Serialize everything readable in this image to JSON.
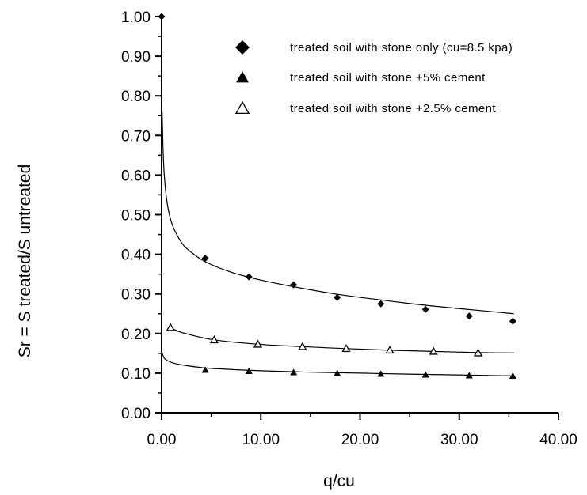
{
  "chart_data": {
    "type": "scatter",
    "title": "",
    "xlabel": "q/cu",
    "ylabel": "Sr = S treated/S untreated",
    "xlim": [
      0,
      40
    ],
    "ylim": [
      0,
      1
    ],
    "x_ticks": [
      "0.00",
      "10.00",
      "20.00",
      "30.00",
      "40.00"
    ],
    "y_ticks": [
      "0.00",
      "0.10",
      "0.20",
      "0.30",
      "0.40",
      "0.50",
      "0.60",
      "0.70",
      "0.80",
      "0.90",
      "1.00"
    ],
    "grid": false,
    "legend_position": "top-right",
    "series": [
      {
        "name": "treated soil with stone only (cu=8.5 kpa)",
        "marker": "filled-diamond",
        "points": [
          [
            0,
            1.0
          ],
          [
            4.4,
            0.39
          ],
          [
            8.8,
            0.343
          ],
          [
            13.3,
            0.323
          ],
          [
            17.7,
            0.291
          ],
          [
            22.1,
            0.275
          ],
          [
            26.6,
            0.261
          ],
          [
            31.0,
            0.244
          ],
          [
            35.4,
            0.231
          ]
        ],
        "fit": [
          [
            0.05,
            0.76
          ],
          [
            0.2,
            0.63
          ],
          [
            0.5,
            0.54
          ],
          [
            1,
            0.48
          ],
          [
            2,
            0.43
          ],
          [
            3,
            0.405
          ],
          [
            4.5,
            0.38
          ],
          [
            7,
            0.355
          ],
          [
            10,
            0.335
          ],
          [
            14,
            0.315
          ],
          [
            18,
            0.298
          ],
          [
            22,
            0.285
          ],
          [
            26,
            0.273
          ],
          [
            30,
            0.263
          ],
          [
            35.5,
            0.25
          ]
        ]
      },
      {
        "name": "treated soil with stone +5% cement",
        "marker": "filled-triangle",
        "points": [
          [
            4.4,
            0.108
          ],
          [
            8.8,
            0.105
          ],
          [
            13.3,
            0.102
          ],
          [
            17.7,
            0.1
          ],
          [
            22.1,
            0.098
          ],
          [
            26.6,
            0.096
          ],
          [
            31.0,
            0.094
          ],
          [
            35.4,
            0.093
          ]
        ],
        "fit": [
          [
            0.05,
            0.152
          ],
          [
            0.3,
            0.137
          ],
          [
            1,
            0.127
          ],
          [
            2,
            0.121
          ],
          [
            4.5,
            0.113
          ],
          [
            9,
            0.107
          ],
          [
            14,
            0.103
          ],
          [
            20,
            0.1
          ],
          [
            26,
            0.097
          ],
          [
            31,
            0.095
          ],
          [
            35.5,
            0.093
          ]
        ]
      },
      {
        "name": "treated soil with stone +2.5% cement",
        "marker": "open-triangle",
        "points": [
          [
            0.9,
            0.215
          ],
          [
            5.3,
            0.184
          ],
          [
            9.7,
            0.173
          ],
          [
            14.2,
            0.167
          ],
          [
            18.6,
            0.162
          ],
          [
            23.0,
            0.158
          ],
          [
            27.4,
            0.155
          ],
          [
            31.9,
            0.151
          ]
        ],
        "fit": [
          [
            0.9,
            0.216
          ],
          [
            2,
            0.203
          ],
          [
            5.3,
            0.184
          ],
          [
            9.7,
            0.173
          ],
          [
            14.2,
            0.167
          ],
          [
            18.6,
            0.162
          ],
          [
            23,
            0.158
          ],
          [
            27.4,
            0.155
          ],
          [
            31.9,
            0.152
          ],
          [
            35.5,
            0.151
          ]
        ]
      }
    ]
  }
}
